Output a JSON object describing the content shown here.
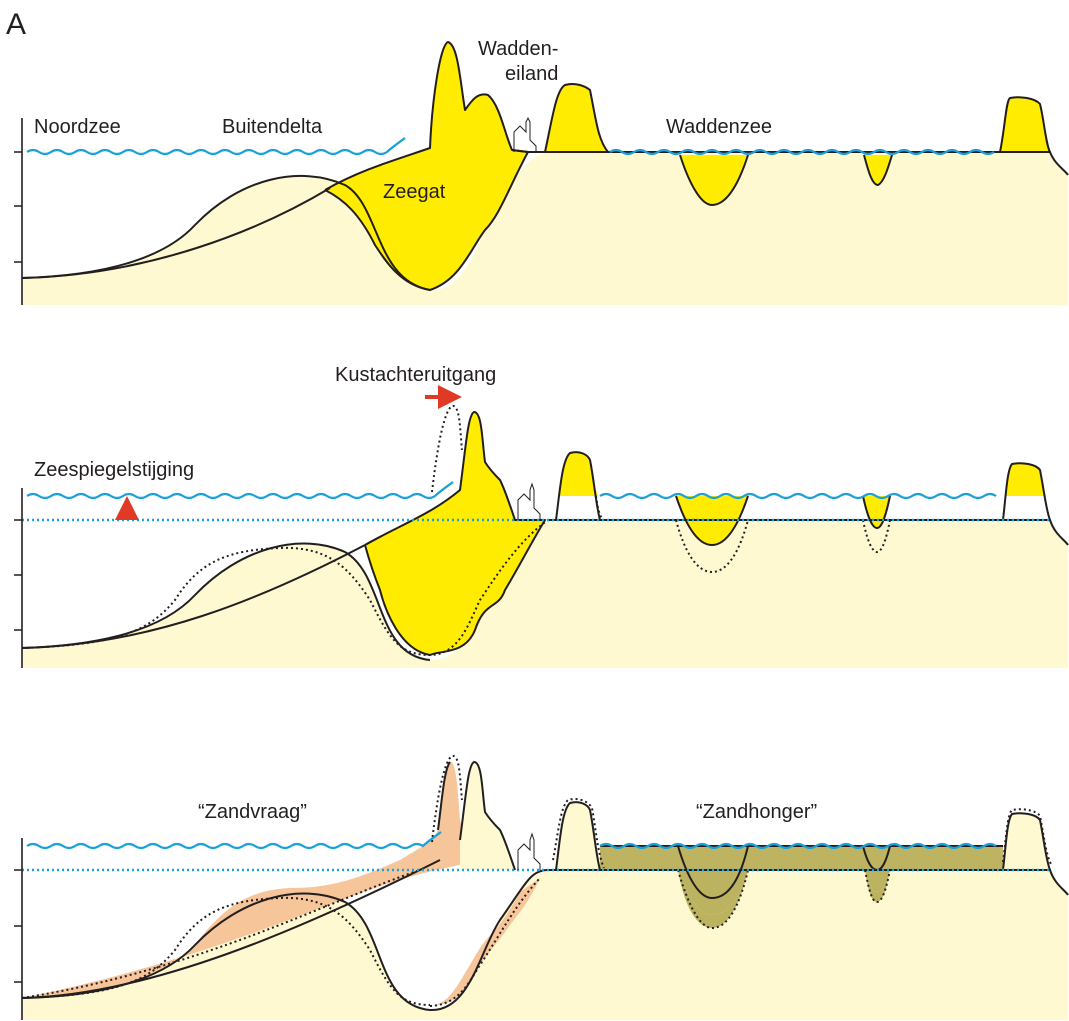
{
  "figure": {
    "panel_letter": "A",
    "colors": {
      "sand": "#fef9d0",
      "active_sand": "#ffec00",
      "sand_demand": "#f7c59a",
      "sand_hunger": "#bcb360",
      "water": "#1ba1d8",
      "sea_level_rise_arrow": "#e03a25"
    }
  },
  "panel1": {
    "noordzee": "Noordzee",
    "buitendelta": "Buitendelta",
    "zeegat": "Zeegat",
    "waddeneiland_line1": "Wadden-",
    "waddeneiland_line2": "eiland",
    "waddenzee": "Waddenzee"
  },
  "panel2": {
    "kustachteruitgang": "Kustachteruitgang",
    "zeespiegelstijging": "Zeespiegelstijging"
  },
  "panel3": {
    "zandvraag": "“Zandvraag”",
    "zandhonger": "“Zandhonger”"
  }
}
